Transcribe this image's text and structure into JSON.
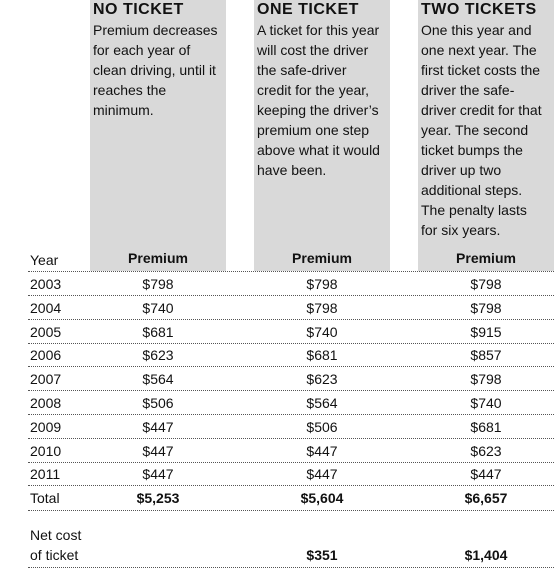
{
  "columns": [
    {
      "title": "NO TICKET",
      "description": [
        "Premium decreases",
        "for each year of",
        "clean driving, until it",
        "reaches the",
        "minimum."
      ],
      "premium_label": "Premium",
      "total": "$5,253"
    },
    {
      "title": "ONE TICKET",
      "description": [
        "A ticket for this year",
        "will cost the driver",
        "the safe-driver",
        "credit for the year,",
        "keeping the driver’s",
        "premium one step",
        "above what it would",
        "have been."
      ],
      "premium_label": "Premium",
      "total": "$5,604",
      "net_cost": "$351"
    },
    {
      "title": "TWO TICKETS",
      "description": [
        "One this year and",
        "one next year. The",
        "first ticket costs the",
        "driver the safe-",
        "driver credit for that",
        "year. The second",
        "ticket bumps the",
        "driver up two",
        "additional steps.",
        "The penalty lasts",
        "for six years."
      ],
      "premium_label": "Premium",
      "total": "$6,657",
      "net_cost": "$1,404"
    }
  ],
  "year_label": "Year",
  "rows": [
    {
      "year": "2003",
      "values": [
        "$798",
        "$798",
        "$798"
      ]
    },
    {
      "year": "2004",
      "values": [
        "$740",
        "$798",
        "$798"
      ]
    },
    {
      "year": "2005",
      "values": [
        "$681",
        "$740",
        "$915"
      ]
    },
    {
      "year": "2006",
      "values": [
        "$623",
        "$681",
        "$857"
      ]
    },
    {
      "year": "2007",
      "values": [
        "$564",
        "$623",
        "$798"
      ]
    },
    {
      "year": "2008",
      "values": [
        "$506",
        "$564",
        "$740"
      ]
    },
    {
      "year": "2009",
      "values": [
        "$447",
        "$506",
        "$681"
      ]
    },
    {
      "year": "2010",
      "values": [
        "$447",
        "$447",
        "$623"
      ]
    },
    {
      "year": "2011",
      "values": [
        "$447",
        "$447",
        "$447"
      ]
    }
  ],
  "total_label": "Total",
  "net_cost_label": [
    "Net cost",
    "of ticket"
  ]
}
